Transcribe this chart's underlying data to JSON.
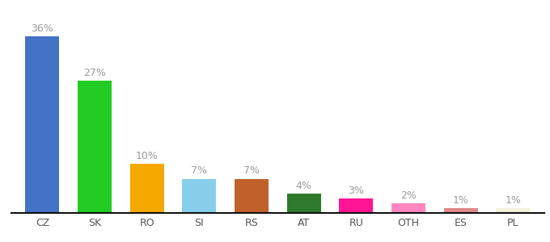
{
  "categories": [
    "CZ",
    "SK",
    "RO",
    "SI",
    "RS",
    "AT",
    "RU",
    "OTH",
    "ES",
    "PL"
  ],
  "values": [
    36,
    27,
    10,
    7,
    7,
    4,
    3,
    2,
    1,
    1
  ],
  "bar_colors": [
    "#4472c4",
    "#22cc22",
    "#f4a800",
    "#87ceeb",
    "#c0612b",
    "#2d7a2d",
    "#ff1493",
    "#ff85c0",
    "#e08888",
    "#f5f0dc"
  ],
  "label_color": "#9b9b9b",
  "axis_line_color": "#111111",
  "background_color": "#ffffff",
  "bar_width": 0.65,
  "ylim": [
    0,
    42
  ],
  "label_fontsize": 9,
  "tick_fontsize": 9,
  "tick_color": "#555555"
}
